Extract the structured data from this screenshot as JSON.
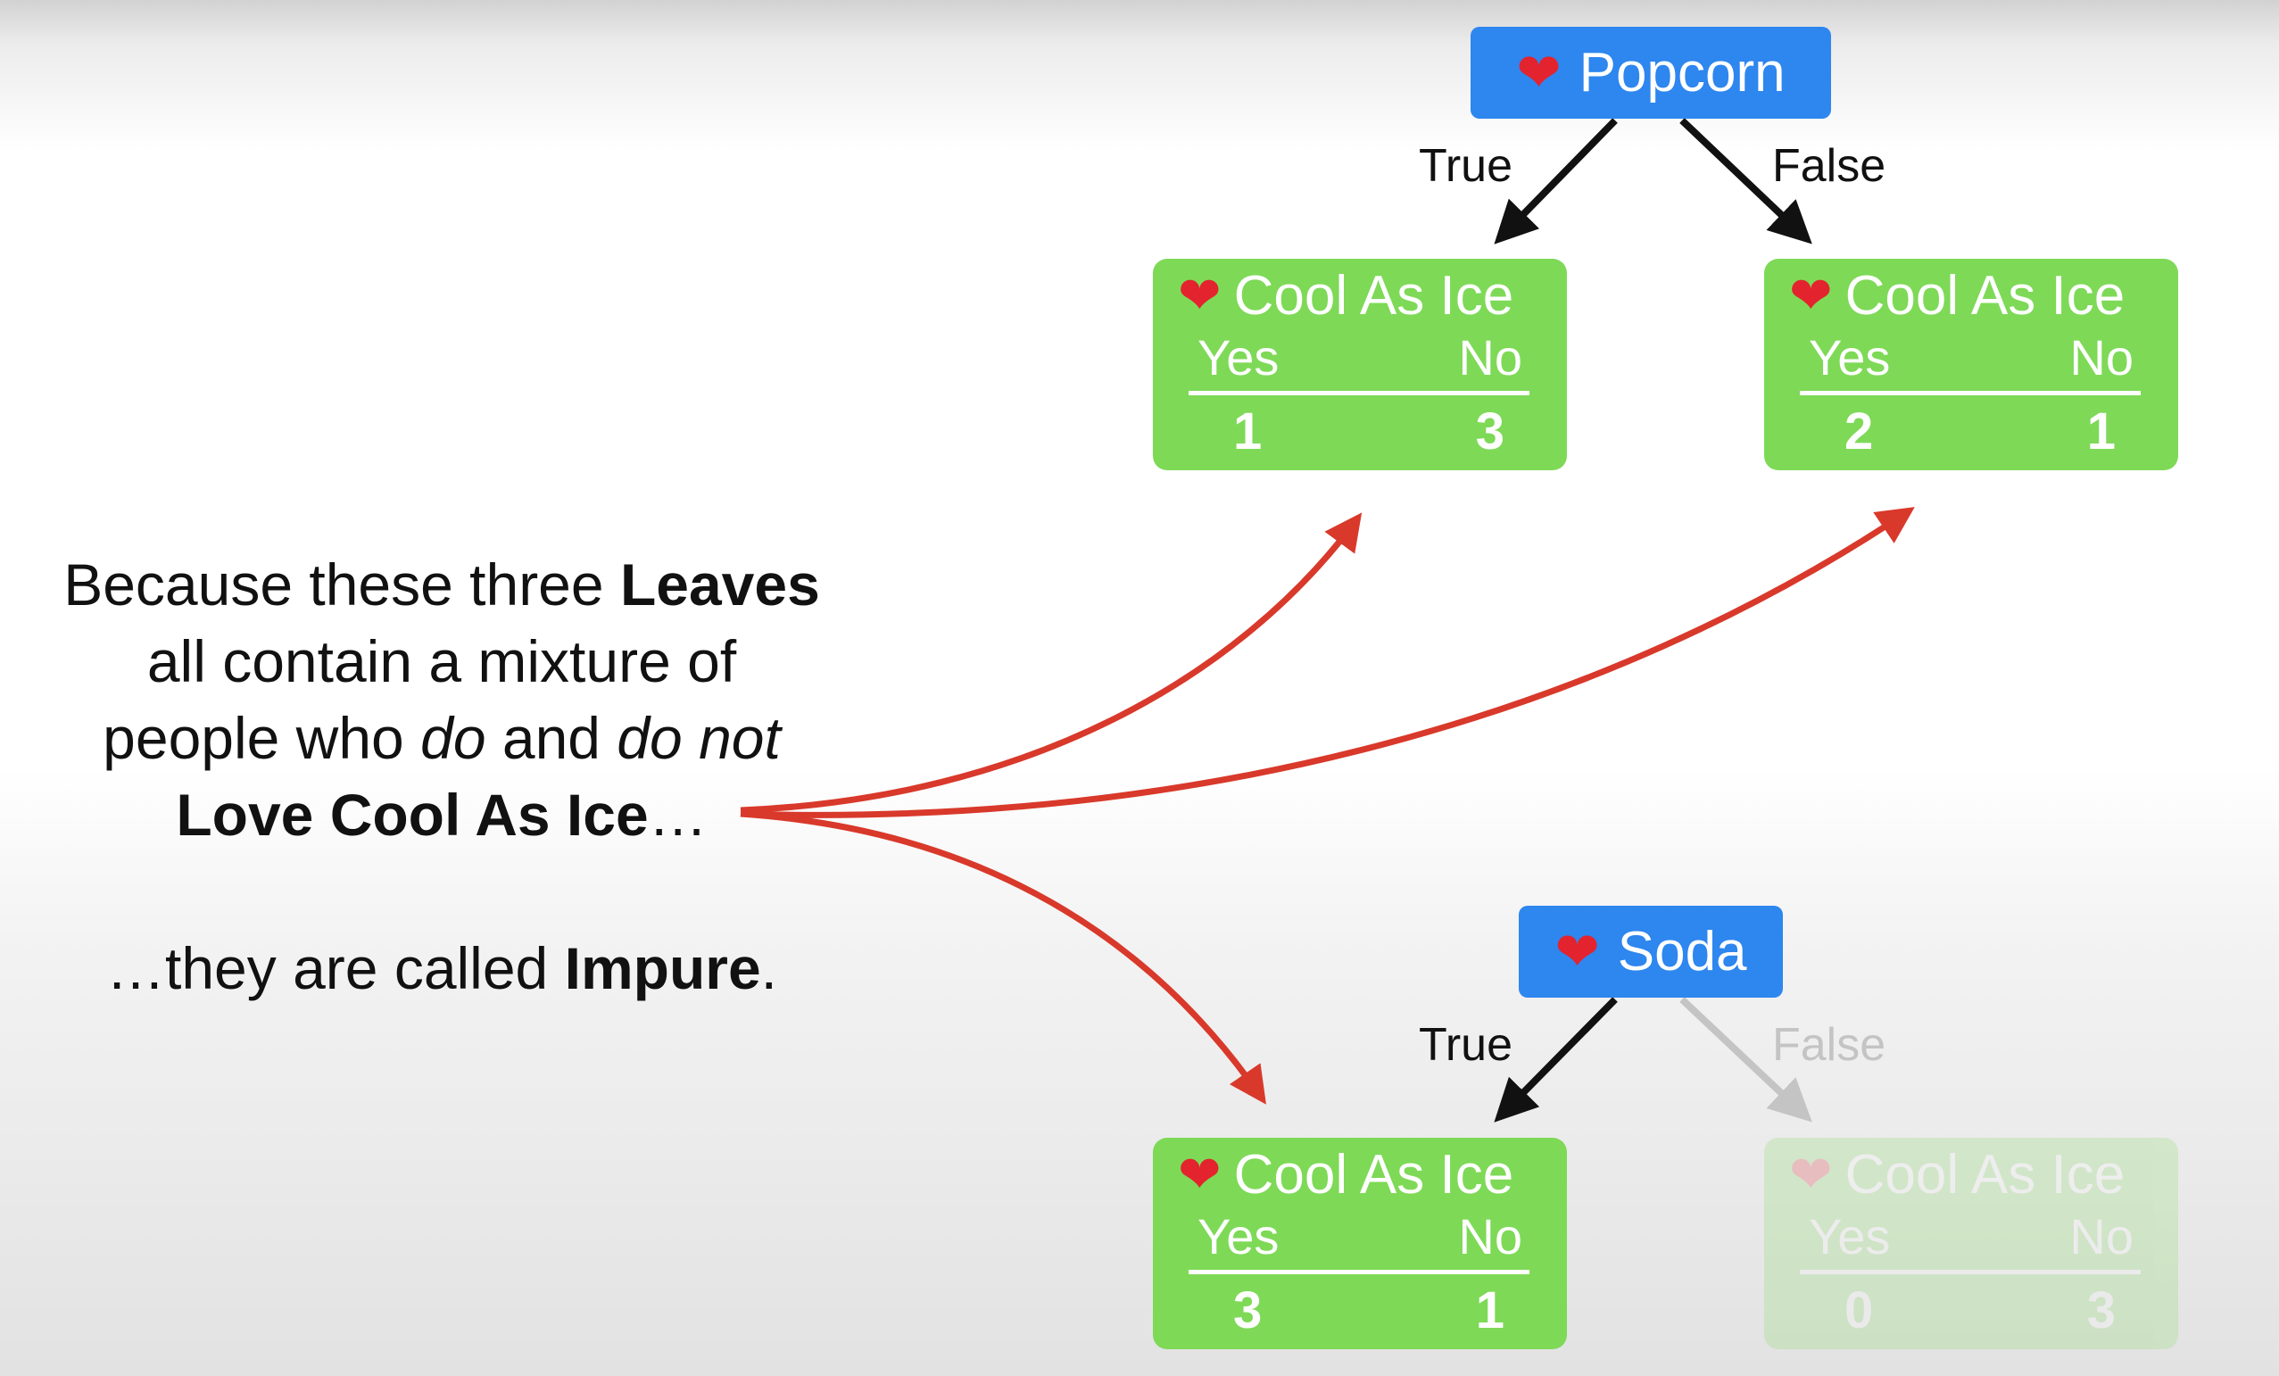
{
  "colors": {
    "node_blue": "#2e86ef",
    "leaf_green": "#7ed957",
    "callout_red": "#d8392b",
    "edge_black": "#111111",
    "edge_faded": "#c4c4c4"
  },
  "icons": {
    "heart": "red-heart-icon"
  },
  "root1": {
    "label": "Popcorn",
    "true_label": "True",
    "false_label": "False",
    "left_leaf": {
      "title": "Cool As Ice",
      "yes": "Yes",
      "no": "No",
      "yes_count": "1",
      "no_count": "3"
    },
    "right_leaf": {
      "title": "Cool As Ice",
      "yes": "Yes",
      "no": "No",
      "yes_count": "2",
      "no_count": "1"
    }
  },
  "root2": {
    "label": "Soda",
    "true_label": "True",
    "false_label": "False",
    "left_leaf": {
      "title": "Cool As Ice",
      "yes": "Yes",
      "no": "No",
      "yes_count": "3",
      "no_count": "1"
    },
    "right_leaf": {
      "title": "Cool As Ice",
      "yes": "Yes",
      "no": "No",
      "yes_count": "0",
      "no_count": "3"
    }
  },
  "text": {
    "line1_plain": "Because these three ",
    "line1_bold": "Leaves",
    "line2": "all contain a mixture of",
    "line3_a": "people who ",
    "line3_italic1": "do",
    "line3_b": " and ",
    "line3_italic2": "do not",
    "line4_bold": "Love Cool As Ice",
    "line4_tail": "…",
    "line5_plain": "…they are called ",
    "line5_bold": "Impure",
    "line5_tail": "."
  }
}
